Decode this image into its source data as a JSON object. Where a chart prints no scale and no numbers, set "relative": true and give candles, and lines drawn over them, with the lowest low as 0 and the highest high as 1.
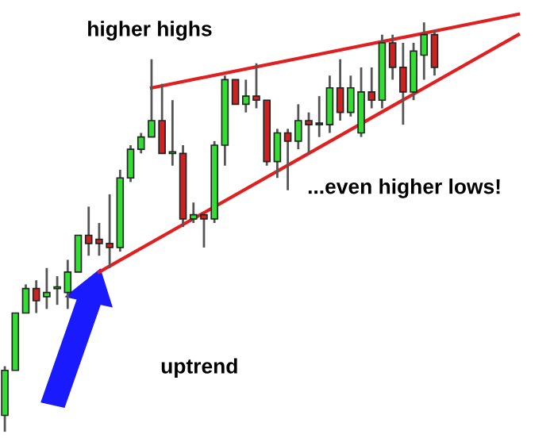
{
  "chart_data": {
    "type": "candlestick",
    "relative": true,
    "categories": [
      null,
      null,
      null,
      null,
      null,
      null,
      null,
      null,
      null,
      null,
      null,
      null,
      null,
      null,
      null,
      null,
      null,
      null,
      null,
      null,
      null,
      null,
      null,
      null,
      null,
      null,
      null,
      null,
      null,
      null,
      null,
      null,
      null,
      null,
      null,
      null,
      null,
      null,
      null,
      null,
      null,
      null,
      null,
      null,
      null,
      null,
      null,
      null,
      null,
      null
    ],
    "ohlc": [
      [
        0.04,
        0.16,
        0,
        0.15
      ],
      [
        0.15,
        0.29,
        0.15,
        0.29
      ],
      [
        0.29,
        0.36,
        0.29,
        0.35
      ],
      [
        0.35,
        0.37,
        0.29,
        0.32
      ],
      [
        0.33,
        0.4,
        0.3,
        0.34
      ],
      [
        0.35,
        0.38,
        0.31,
        0.35
      ],
      [
        0.34,
        0.42,
        0.3,
        0.39
      ],
      [
        0.39,
        0.48,
        0.39,
        0.48
      ],
      [
        0.48,
        0.55,
        0.43,
        0.46
      ],
      [
        0.47,
        0.51,
        0.43,
        0.46
      ],
      [
        0.46,
        0.58,
        0.4,
        0.45
      ],
      [
        0.45,
        0.64,
        0.44,
        0.62
      ],
      [
        0.62,
        0.7,
        0.61,
        0.69
      ],
      [
        0.69,
        0.73,
        0.68,
        0.72
      ],
      [
        0.72,
        0.91,
        0.72,
        0.76
      ],
      [
        0.76,
        0.85,
        0.68,
        0.68
      ],
      [
        0.68,
        0.81,
        0.65,
        0.68
      ],
      [
        0.68,
        0.7,
        0.5,
        0.52
      ],
      [
        0.52,
        0.56,
        0.51,
        0.53
      ],
      [
        0.53,
        0.53,
        0.45,
        0.52
      ],
      [
        0.52,
        0.71,
        0.51,
        0.7
      ],
      [
        0.7,
        0.87,
        0.65,
        0.86
      ],
      [
        0.86,
        0.86,
        0.8,
        0.8
      ],
      [
        0.8,
        0.86,
        0.78,
        0.82
      ],
      [
        0.82,
        0.9,
        0.79,
        0.81
      ],
      [
        0.81,
        0.81,
        0.65,
        0.66
      ],
      [
        0.66,
        0.74,
        0.62,
        0.73
      ],
      [
        0.73,
        0.74,
        0.59,
        0.71
      ],
      [
        0.71,
        0.8,
        0.69,
        0.76
      ],
      [
        0.76,
        0.78,
        0.68,
        0.75
      ],
      [
        0.75,
        0.82,
        0.72,
        0.75
      ],
      [
        0.75,
        0.87,
        0.73,
        0.84
      ],
      [
        0.84,
        0.91,
        0.76,
        0.78
      ],
      [
        0.78,
        0.87,
        0.77,
        0.84
      ],
      [
        0.73,
        0.89,
        0.72,
        0.83
      ],
      [
        0.83,
        0.89,
        0.79,
        0.81
      ],
      [
        0.81,
        0.97,
        0.79,
        0.95
      ],
      [
        0.95,
        0.97,
        0.86,
        0.89
      ],
      [
        0.89,
        0.95,
        0.75,
        0.83
      ],
      [
        0.83,
        0.95,
        0.81,
        0.93
      ],
      [
        0.92,
        1,
        0.86,
        0.97
      ],
      [
        0.97,
        0.98,
        0.87,
        0.89
      ],
      null,
      null,
      null,
      null,
      null,
      null,
      null,
      null
    ],
    "colors": [
      "#33dd33",
      "#33dd33",
      "#33dd33",
      "#cc2222",
      "#33dd33",
      "#33dd33",
      "#33dd33",
      "#33dd33",
      "#cc2222",
      "#cc2222",
      "#cc2222",
      "#33dd33",
      "#33dd33",
      "#33dd33",
      "#33dd33",
      "#cc2222",
      "#33dd33",
      "#cc2222",
      "#33dd33",
      "#cc2222",
      "#33dd33",
      "#33dd33",
      "#cc2222",
      "#33dd33",
      "#cc2222",
      "#cc2222",
      "#33dd33",
      "#cc2222",
      "#33dd33",
      "#cc2222",
      "#33dd33",
      "#33dd33",
      "#cc2222",
      "#33dd33",
      "#33dd33",
      "#cc2222",
      "#33dd33",
      "#cc2222",
      "#cc2222",
      "#33dd33",
      "#33dd33",
      "#cc2222",
      null,
      null,
      null,
      null,
      null,
      null,
      null,
      null
    ],
    "series": [
      {
        "type": "line",
        "color": "#e02020",
        "values": [
          null,
          null,
          null,
          null,
          null,
          null,
          null,
          null,
          null,
          null,
          null,
          null,
          null,
          null,
          0.84,
          null,
          null,
          null,
          null,
          null,
          null,
          null,
          null,
          null,
          null,
          null,
          null,
          null,
          null,
          null,
          null,
          null,
          null,
          null,
          null,
          null,
          null,
          null,
          null,
          null,
          null,
          null,
          null,
          null,
          null,
          null,
          null,
          null,
          null,
          1.02
        ]
      },
      {
        "type": "line",
        "color": "#e02020",
        "values": [
          null,
          null,
          null,
          null,
          null,
          null,
          null,
          null,
          null,
          0.39,
          null,
          null,
          null,
          null,
          null,
          null,
          null,
          null,
          null,
          null,
          null,
          null,
          null,
          null,
          null,
          null,
          null,
          null,
          null,
          null,
          null,
          null,
          null,
          null,
          null,
          null,
          null,
          null,
          null,
          null,
          null,
          null,
          null,
          null,
          null,
          null,
          null,
          null,
          null,
          0.97
        ]
      }
    ],
    "annotations": [
      "higher highs",
      "...even higher lows!",
      "uptrend"
    ]
  }
}
